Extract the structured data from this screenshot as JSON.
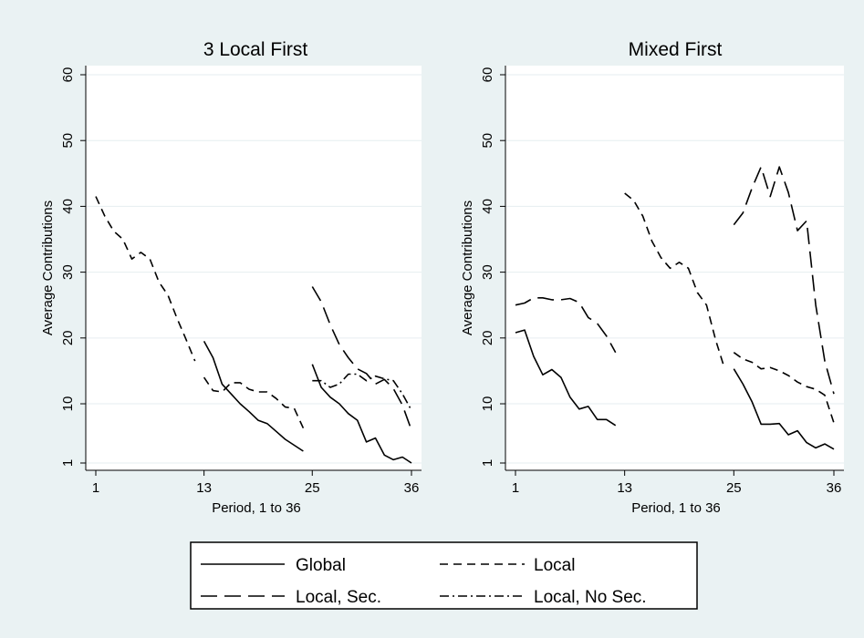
{
  "chart_data": [
    {
      "type": "line",
      "title": "3 Local First",
      "xlabel": "Period, 1 to 36",
      "ylabel": "Average Contributions",
      "xlim": [
        1,
        36
      ],
      "ylim": [
        1,
        60
      ],
      "xticks": [
        1,
        13,
        25,
        36
      ],
      "yticks": [
        1,
        10,
        20,
        30,
        40,
        50,
        60
      ],
      "grid": true,
      "series": [
        {
          "name": "Global",
          "segments": [
            {
              "x": [
                13,
                14,
                15,
                16,
                17,
                18,
                19,
                20,
                21,
                22,
                23,
                24
              ],
              "y": [
                19.5,
                17,
                13,
                11.5,
                10,
                8.8,
                7.5,
                7,
                5.8,
                4.6,
                3.7,
                2.8
              ]
            },
            {
              "x": [
                25,
                26,
                27,
                28,
                29,
                30,
                31,
                32,
                33,
                34,
                35,
                36
              ],
              "y": [
                16,
                12.5,
                11,
                10,
                8.5,
                7.5,
                4.2,
                4.8,
                2.2,
                1.5,
                1.9,
                1
              ]
            }
          ]
        },
        {
          "name": "Local",
          "segments": [
            {
              "x": [
                1,
                2,
                3,
                4,
                5,
                6,
                7,
                8,
                9,
                10,
                11,
                12
              ],
              "y": [
                41.5,
                38.5,
                36.2,
                35,
                32,
                33,
                32,
                28.5,
                26.5,
                23,
                19.8,
                16.5
              ]
            },
            {
              "x": [
                13,
                14,
                15,
                16,
                17,
                18,
                19,
                20,
                21,
                22,
                23,
                24
              ],
              "y": [
                14,
                12,
                11.8,
                13.2,
                13.2,
                12.2,
                11.8,
                11.8,
                10.8,
                9.5,
                9.3,
                6.3
              ]
            }
          ]
        },
        {
          "name": "Local, Sec.",
          "segments": [
            {
              "x": [
                25,
                26,
                27,
                28,
                29,
                30,
                31,
                32,
                33,
                34,
                35,
                36
              ],
              "y": [
                27.8,
                25.5,
                22,
                19,
                17,
                15.3,
                14.6,
                13,
                13.7,
                12.3,
                9.8,
                6
              ]
            }
          ]
        },
        {
          "name": "Local, No Sec.",
          "segments": [
            {
              "x": [
                25,
                26,
                27,
                28,
                29,
                30,
                31,
                32,
                33,
                34,
                35,
                36
              ],
              "y": [
                13.5,
                13.5,
                12.5,
                13,
                14.5,
                14.5,
                13.5,
                14.2,
                13.8,
                13.5,
                11.5,
                9
              ]
            }
          ]
        }
      ]
    },
    {
      "type": "line",
      "title": "Mixed First",
      "xlabel": "Period, 1 to 36",
      "ylabel": "Average Contributions",
      "xlim": [
        1,
        36
      ],
      "ylim": [
        1,
        60
      ],
      "xticks": [
        1,
        13,
        25,
        36
      ],
      "yticks": [
        1,
        10,
        20,
        30,
        40,
        50,
        60
      ],
      "grid": true,
      "series": [
        {
          "name": "Global",
          "segments": [
            {
              "x": [
                1,
                2,
                3,
                4,
                5,
                6,
                7,
                8,
                9,
                10,
                11,
                12
              ],
              "y": [
                20.8,
                21.2,
                17.2,
                14.4,
                15.2,
                14,
                11,
                9.2,
                9.6,
                7.6,
                7.6,
                6.7
              ]
            },
            {
              "x": [
                25,
                26,
                27,
                28,
                29,
                30,
                31,
                32,
                33,
                34,
                35,
                36
              ],
              "y": [
                15.3,
                13,
                10.3,
                6.9,
                6.9,
                7,
                5.3,
                5.9,
                4.1,
                3.3,
                3.9,
                3.1
              ]
            }
          ]
        },
        {
          "name": "Local",
          "segments": [
            {
              "x": [
                13,
                14,
                15,
                16,
                17,
                18,
                19,
                20,
                21,
                22,
                23,
                24
              ],
              "y": [
                42,
                40.9,
                38.5,
                34.7,
                32.2,
                30.6,
                31.5,
                30.6,
                26.9,
                25,
                19.7,
                15.3
              ]
            },
            {
              "x": [
                25,
                26,
                27,
                28,
                29,
                30,
                31,
                32,
                33,
                34,
                35,
                36
              ],
              "y": [
                17.8,
                16.8,
                16.3,
                15.3,
                15.5,
                15,
                14.3,
                13.3,
                12.6,
                12.2,
                11.3,
                7.1
              ]
            }
          ]
        },
        {
          "name": "Local, Sec.",
          "segments": [
            {
              "x": [
                1,
                2,
                3,
                4,
                5,
                6,
                7,
                8,
                9,
                10,
                11,
                12
              ],
              "y": [
                25,
                25.3,
                26.1,
                26.1,
                25.8,
                25.8,
                26,
                25.4,
                23.1,
                22.2,
                20.3,
                17.8
              ]
            },
            {
              "x": [
                25,
                26,
                27,
                28,
                29,
                30,
                31,
                32,
                33,
                34,
                35,
                36
              ],
              "y": [
                37.2,
                39,
                42.8,
                46,
                41.5,
                46,
                42.1,
                36.3,
                37.8,
                25,
                16.5,
                11.5
              ]
            }
          ]
        },
        {
          "name": "Local, No Sec.",
          "segments": []
        }
      ]
    }
  ],
  "legend": {
    "placement": "bottom-center",
    "items": [
      {
        "label": "Global",
        "style": "solid"
      },
      {
        "label": "Local",
        "style": "short-dash"
      },
      {
        "label": "Local, Sec.",
        "style": "long-dash"
      },
      {
        "label": "Local, No Sec.",
        "style": "dash-dot"
      }
    ]
  },
  "colors": {
    "background": "#eaf2f3",
    "plot_background": "#ffffff",
    "grid": "#e6eef0",
    "line": "#000000"
  }
}
